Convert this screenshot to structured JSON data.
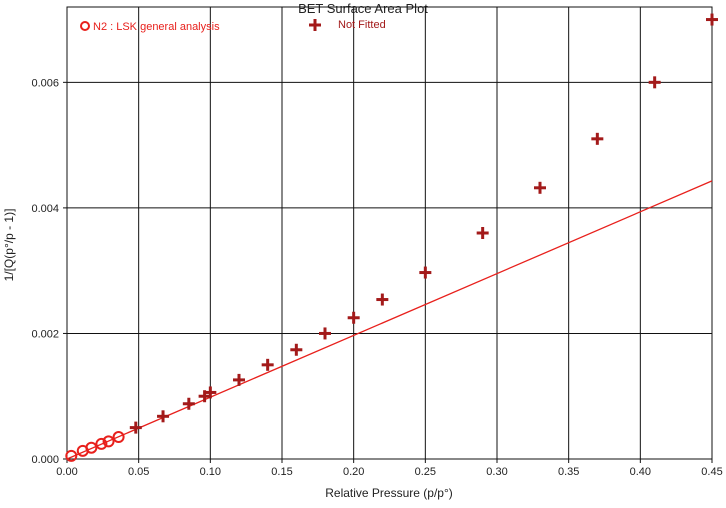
{
  "chart_data": {
    "type": "scatter",
    "title": "BET Surface Area Plot",
    "xlabel": "Relative Pressure (p/p°)",
    "ylabel": "1/[Q(p°/p - 1)]",
    "xlim": [
      0.0,
      0.45
    ],
    "ylim": [
      0.0,
      0.0072
    ],
    "x_ticks": [
      "0.00",
      "0.05",
      "0.10",
      "0.15",
      "0.20",
      "0.25",
      "0.30",
      "0.35",
      "0.40",
      "0.45"
    ],
    "x_tick_values": [
      0.0,
      0.05,
      0.1,
      0.15,
      0.2,
      0.25,
      0.3,
      0.35,
      0.4,
      0.45
    ],
    "y_ticks": [
      "0.000",
      "0.002",
      "0.004",
      "0.006"
    ],
    "y_tick_values": [
      0.0,
      0.002,
      0.004,
      0.006
    ],
    "grid": true,
    "legend_position": "top-left",
    "series": [
      {
        "name": "N2 : LSK general analysis",
        "marker": "circle",
        "color": "#e8201c",
        "x": [
          0.003,
          0.011,
          0.017,
          0.024,
          0.029,
          0.036
        ],
        "y": [
          5e-05,
          0.00013,
          0.00018,
          0.00024,
          0.00028,
          0.00035
        ]
      },
      {
        "name": "Not Fitted",
        "marker": "plus",
        "color": "#a31a1a",
        "x": [
          0.048,
          0.067,
          0.085,
          0.096,
          0.1,
          0.12,
          0.14,
          0.16,
          0.18,
          0.2,
          0.22,
          0.25,
          0.29,
          0.33,
          0.37,
          0.41,
          0.45
        ],
        "y": [
          0.0005,
          0.00068,
          0.00088,
          0.001,
          0.00106,
          0.00126,
          0.0015,
          0.00174,
          0.002,
          0.00225,
          0.00254,
          0.00297,
          0.0036,
          0.00432,
          0.0051,
          0.006,
          0.007
        ]
      }
    ],
    "fit_line": {
      "color": "#e8201c",
      "x": [
        0.0,
        0.45
      ],
      "y": [
        0.0,
        0.00443
      ]
    }
  }
}
